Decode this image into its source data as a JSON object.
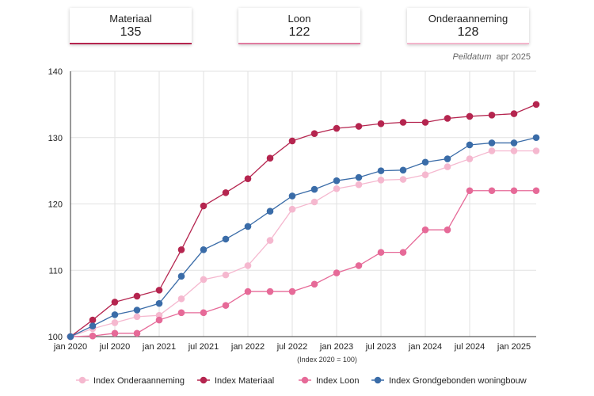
{
  "kpis": [
    {
      "label": "Materiaal",
      "value": "135",
      "color": "#b5254f"
    },
    {
      "label": "Loon",
      "value": "122",
      "color": "#e07ba0"
    },
    {
      "label": "Onderaanneming",
      "value": "128",
      "color": "#f3b5cc"
    }
  ],
  "peildatum": {
    "label": "Peildatum",
    "value": "apr 2025"
  },
  "chart_data": {
    "type": "line",
    "xlabel": "(Index 2020 = 100)",
    "ylabel": "",
    "ylim": [
      100,
      140
    ],
    "yticks": [
      100,
      110,
      120,
      130,
      140
    ],
    "xlim": [
      0,
      21
    ],
    "xticks": [
      {
        "q": 0,
        "label": "jan 2020"
      },
      {
        "q": 2,
        "label": "jul 2020"
      },
      {
        "q": 4,
        "label": "jan 2021"
      },
      {
        "q": 6,
        "label": "jul 2021"
      },
      {
        "q": 8,
        "label": "jan 2022"
      },
      {
        "q": 10,
        "label": "jul 2022"
      },
      {
        "q": 12,
        "label": "jan 2023"
      },
      {
        "q": 14,
        "label": "jul 2023"
      },
      {
        "q": 16,
        "label": "jan 2024"
      },
      {
        "q": 18,
        "label": "jul 2024"
      },
      {
        "q": 20,
        "label": "jan 2025"
      }
    ],
    "x": [
      0,
      1,
      2,
      3,
      4,
      5,
      6,
      7,
      8,
      9,
      10,
      11,
      12,
      13,
      14,
      15,
      16,
      17,
      18,
      19,
      20,
      21
    ],
    "grid": true,
    "legend_position": "bottom",
    "series": [
      {
        "name": "Index Onderaanneming",
        "color": "#f5b8cf",
        "values": [
          100,
          101.2,
          102.1,
          103.0,
          103.2,
          105.7,
          108.6,
          109.3,
          110.7,
          114.5,
          119.2,
          120.3,
          122.3,
          122.9,
          123.6,
          123.7,
          124.4,
          125.6,
          126.8,
          128.0,
          128.0,
          128.0
        ]
      },
      {
        "name": "Index Materiaal",
        "color": "#b5254f",
        "values": [
          100,
          102.5,
          105.2,
          106.1,
          107.0,
          113.1,
          119.7,
          121.7,
          123.8,
          126.9,
          129.5,
          130.6,
          131.4,
          131.7,
          132.1,
          132.3,
          132.3,
          132.9,
          133.2,
          133.4,
          133.6,
          135.0
        ]
      },
      {
        "name": "Index Loon",
        "color": "#e66a98",
        "values": [
          100,
          100.1,
          100.5,
          100.5,
          102.5,
          103.6,
          103.6,
          104.7,
          106.8,
          106.8,
          106.8,
          107.9,
          109.6,
          110.7,
          112.7,
          112.7,
          116.1,
          116.1,
          122.0,
          122.0,
          122.0,
          122.0
        ]
      },
      {
        "name": "Index Grondgebonden woningbouw",
        "color": "#3a6ca8",
        "values": [
          100,
          101.6,
          103.3,
          104.0,
          105.0,
          109.1,
          113.1,
          114.7,
          116.6,
          118.9,
          121.2,
          122.2,
          123.5,
          124.0,
          125.0,
          125.1,
          126.3,
          126.8,
          128.9,
          129.2,
          129.2,
          130.0
        ]
      }
    ]
  }
}
